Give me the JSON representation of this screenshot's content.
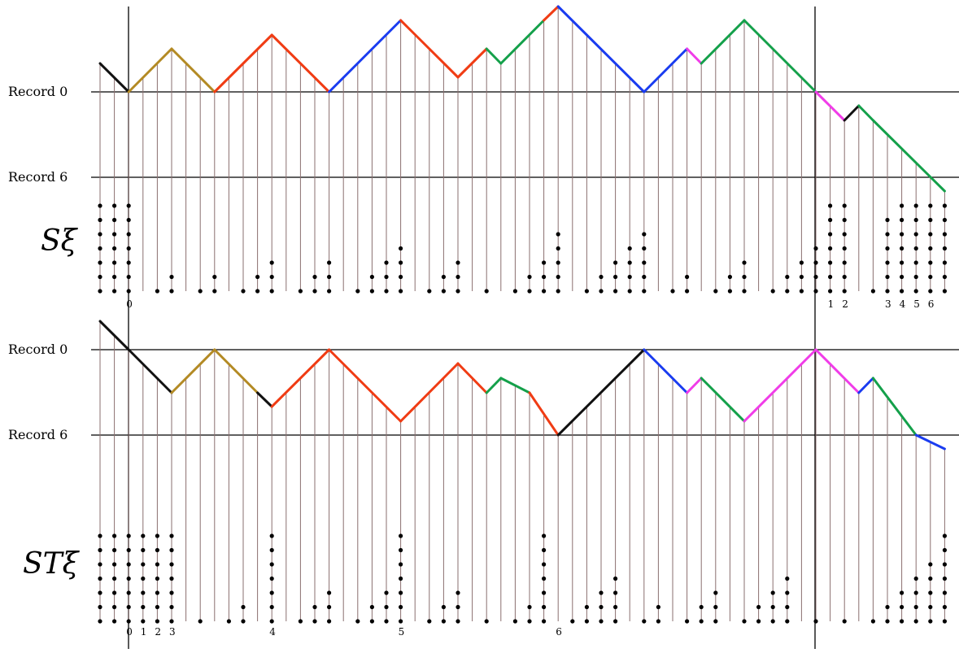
{
  "record_labels": {
    "top": "Record 0",
    "bottom": "Record 6"
  },
  "panel_top": {
    "title": "Sξ",
    "tick_labels": [
      "0",
      "1",
      "2",
      "3",
      "4",
      "5",
      "6"
    ],
    "tick_label_columns": [
      2,
      51,
      52,
      55,
      56,
      57,
      58
    ]
  },
  "panel_bottom": {
    "title": "STξ",
    "tick_labels": [
      "0",
      "1",
      "2",
      "3",
      "4",
      "5",
      "6"
    ],
    "tick_label_columns": [
      2,
      3,
      4,
      5,
      12,
      21,
      32
    ]
  },
  "colors": {
    "stem": "#8a6f6f",
    "black": "#111111",
    "olive": "#b38a24",
    "red": "#f03c14",
    "blue": "#1a3cf0",
    "green": "#14a04a",
    "magenta": "#f03ce8"
  },
  "stem_ticks_per_column": 60
}
